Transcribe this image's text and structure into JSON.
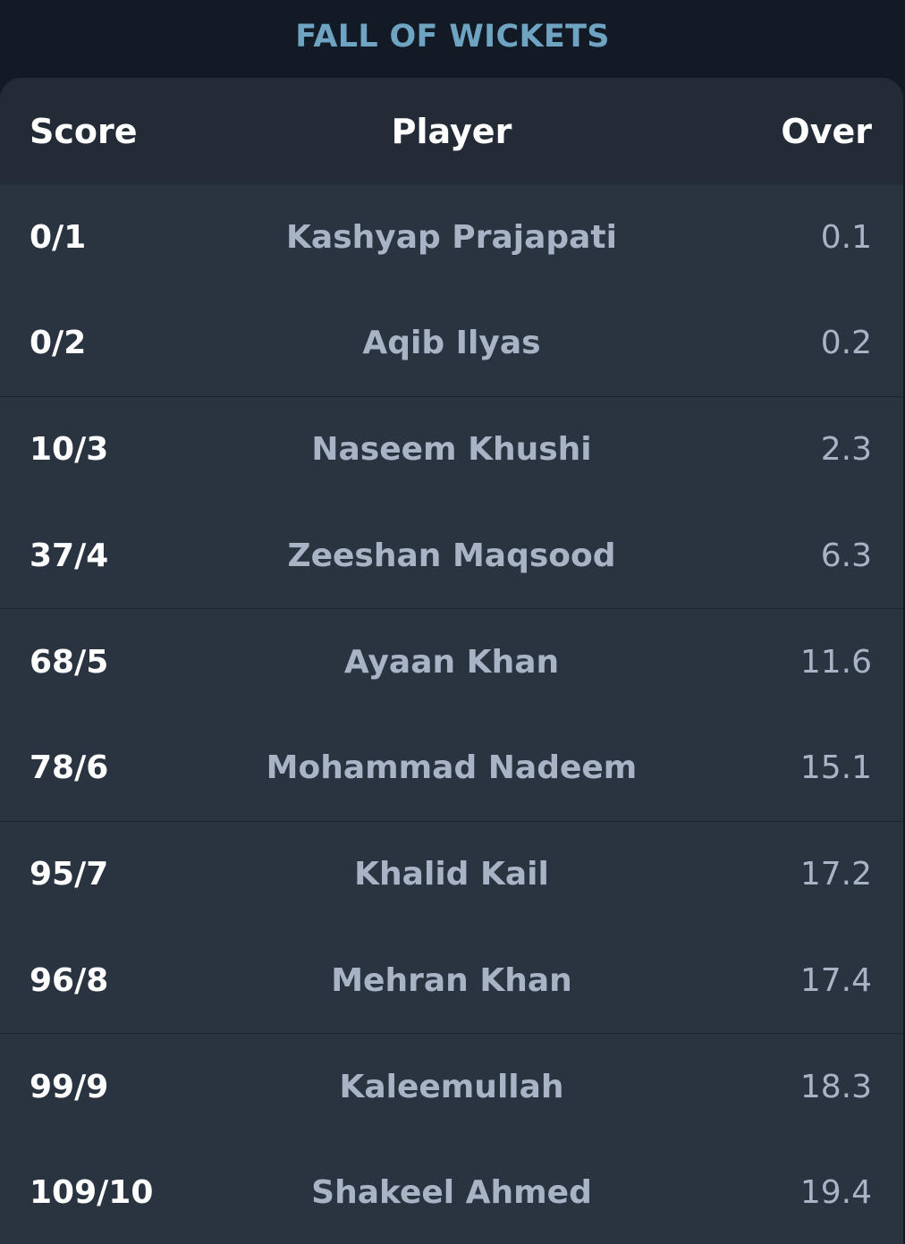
{
  "title": "FALL OF WICKETS",
  "table": {
    "headers": {
      "score": "Score",
      "player": "Player",
      "over": "Over"
    },
    "rows": [
      {
        "score": "0/1",
        "player": "Kashyap Prajapati",
        "over": "0.1"
      },
      {
        "score": "0/2",
        "player": "Aqib Ilyas",
        "over": "0.2"
      },
      {
        "score": "10/3",
        "player": "Naseem Khushi",
        "over": "2.3"
      },
      {
        "score": "37/4",
        "player": "Zeeshan Maqsood",
        "over": "6.3"
      },
      {
        "score": "68/5",
        "player": "Ayaan Khan",
        "over": "11.6"
      },
      {
        "score": "78/6",
        "player": "Mohammad Nadeem",
        "over": "15.1"
      },
      {
        "score": "95/7",
        "player": "Khalid Kail",
        "over": "17.2"
      },
      {
        "score": "96/8",
        "player": "Mehran Khan",
        "over": "17.4"
      },
      {
        "score": "99/9",
        "player": "Kaleemullah",
        "over": "18.3"
      },
      {
        "score": "109/10",
        "player": "Shakeel Ahmed",
        "over": "19.4"
      }
    ]
  },
  "colors": {
    "background": "#121a26",
    "card": "#2a3340",
    "header": "#232b37",
    "title": "#6fa3c2",
    "muted_text": "#a8b4c6",
    "bright_text": "#ffffff"
  }
}
